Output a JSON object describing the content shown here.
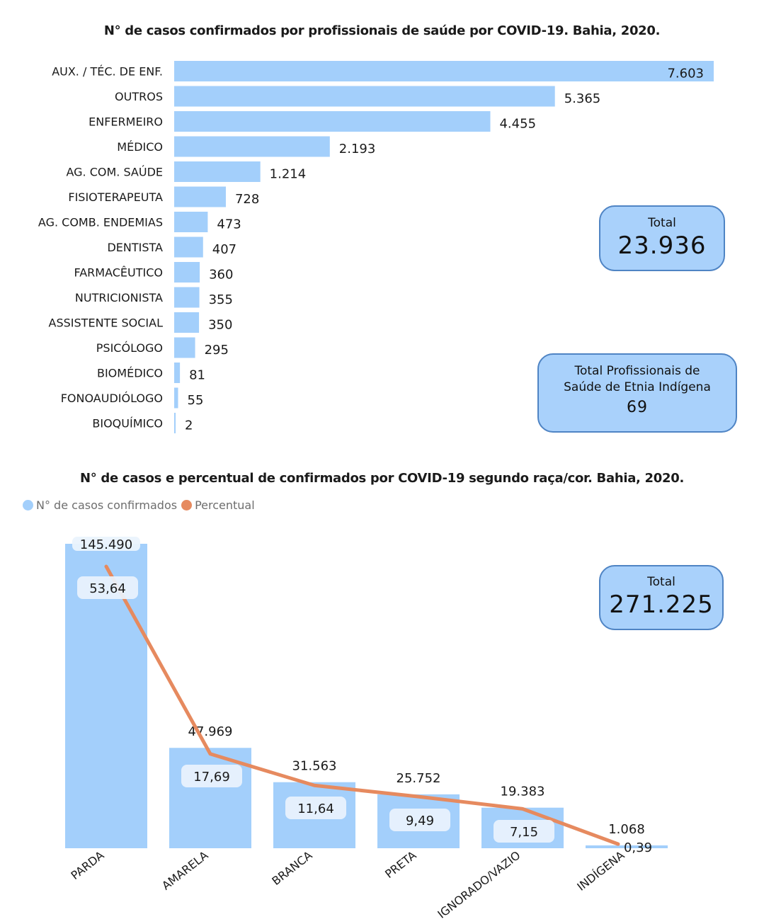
{
  "title1": "N° de casos confirmados por profissionais de saúde por COVID-19. Bahia, 2020.",
  "title2": "N° de casos e percentual de confirmados por COVID-19 segundo raça/cor. Bahia, 2020.",
  "legend": {
    "series1": "N° de casos confirmados",
    "series2": "Percentual"
  },
  "kpi_total_profissionais": {
    "label": "Total",
    "value": "23.936"
  },
  "kpi_indigena": {
    "label_line1": "Total Profissionais de",
    "label_line2": "Saúde de Etnia Indígena",
    "value": "69"
  },
  "kpi_total_raca": {
    "label": "Total",
    "value": "271.225"
  },
  "colors": {
    "bar": "#a3cffb",
    "line": "#e68a5f",
    "kpi_fill": "#a9d1fb",
    "kpi_border": "#4f84c4"
  },
  "chart_data": [
    {
      "type": "bar",
      "orientation": "horizontal",
      "title": "N° de casos confirmados por profissionais de saúde por COVID-19. Bahia, 2020.",
      "categories": [
        "AUX. / TÉC. DE ENF.",
        "OUTROS",
        "ENFERMEIRO",
        "MÉDICO",
        "AG. COM. SAÚDE",
        "FISIOTERAPEUTA",
        "AG. COMB. ENDEMIAS",
        "DENTISTA",
        "FARMACÊUTICO",
        "NUTRICIONISTA",
        "ASSISTENTE SOCIAL",
        "PSICÓLOGO",
        "BIOMÉDICO",
        "FONOAUDIÓLOGO",
        "BIOQUÍMICO"
      ],
      "values": [
        7603,
        5365,
        4455,
        2193,
        1214,
        728,
        473,
        407,
        360,
        355,
        350,
        295,
        81,
        55,
        2
      ],
      "value_labels": [
        "7.603",
        "5.365",
        "4.455",
        "2.193",
        "1.214",
        "728",
        "473",
        "407",
        "360",
        "355",
        "350",
        "295",
        "81",
        "55",
        "2"
      ]
    },
    {
      "type": "bar",
      "title": "N° de casos e percentual de confirmados por COVID-19 segundo raça/cor. Bahia, 2020.",
      "categories": [
        "PARDA",
        "AMARELA",
        "BRANCA",
        "PRETA",
        "IGNORADO/VAZIO",
        "INDÍGENA"
      ],
      "series": [
        {
          "name": "N° de casos confirmados",
          "type": "bar",
          "values": [
            145490,
            47969,
            31563,
            25752,
            19383,
            1068
          ],
          "value_labels": [
            "145.490",
            "47.969",
            "31.563",
            "25.752",
            "19.383",
            "1.068"
          ]
        },
        {
          "name": "Percentual",
          "type": "line",
          "values": [
            53.64,
            17.69,
            11.64,
            9.49,
            7.15,
            0.39
          ],
          "value_labels": [
            "53,64",
            "17,69",
            "11,64",
            "9,49",
            "7,15",
            "0,39"
          ]
        }
      ]
    }
  ]
}
